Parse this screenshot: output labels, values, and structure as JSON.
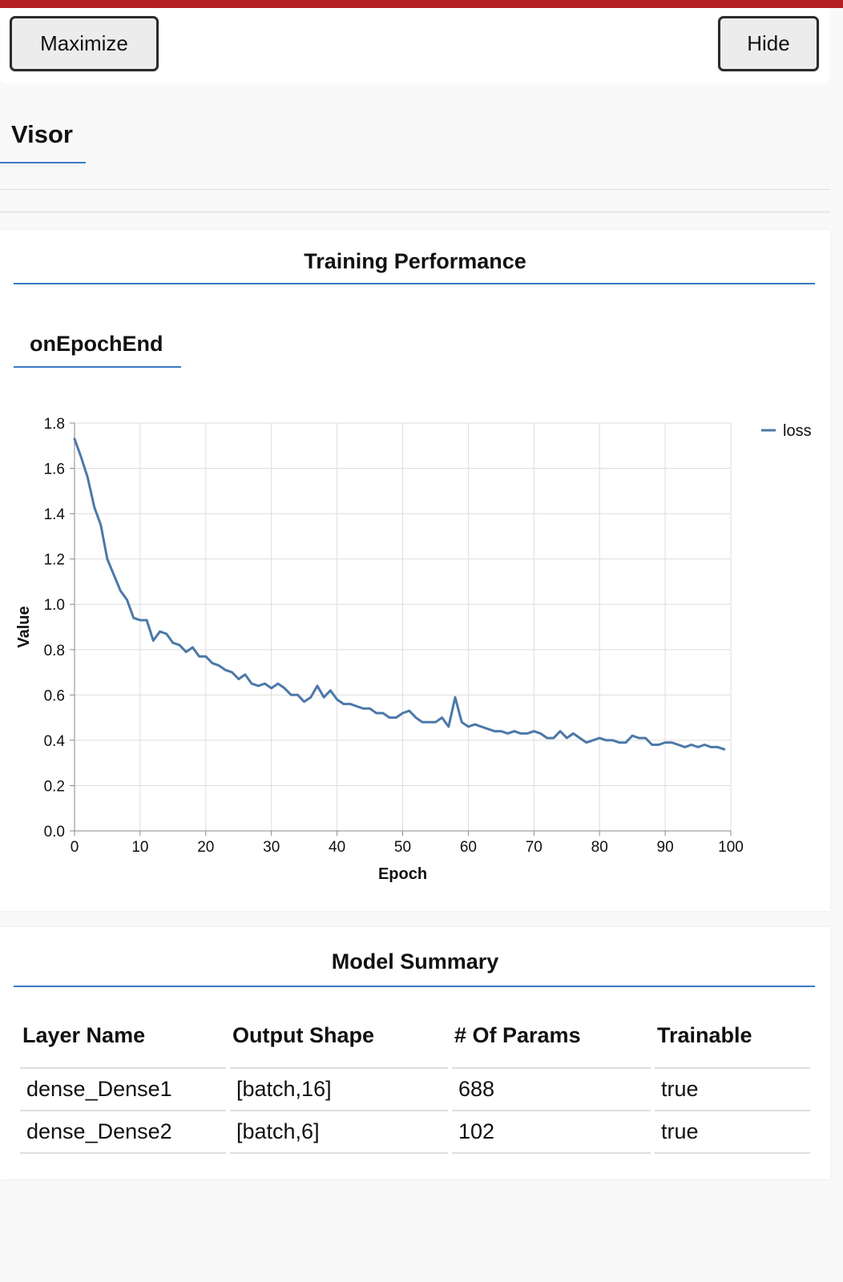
{
  "toolbar": {
    "maximize_label": "Maximize",
    "hide_label": "Hide"
  },
  "visor": {
    "title": "Visor"
  },
  "colors": {
    "accent": "#3b78c3",
    "top_bar": "#b22026",
    "series_line": "#4c78a8"
  },
  "training": {
    "title": "Training Performance",
    "tab": "onEpochEnd"
  },
  "chart_data": {
    "type": "line",
    "xlabel": "Epoch",
    "ylabel": "Value",
    "xlim": [
      0,
      100
    ],
    "ylim": [
      0,
      1.8
    ],
    "x_ticks": [
      "0",
      "10",
      "20",
      "30",
      "40",
      "50",
      "60",
      "70",
      "80",
      "90",
      "100"
    ],
    "y_ticks": [
      "0.0",
      "0.2",
      "0.4",
      "0.6",
      "0.8",
      "1.0",
      "1.2",
      "1.4",
      "1.6",
      "1.8"
    ],
    "grid": true,
    "legend_position": "top-right",
    "series": [
      {
        "name": "loss",
        "color": "#4c78a8",
        "x": [
          0,
          1,
          2,
          3,
          4,
          5,
          6,
          7,
          8,
          9,
          10,
          11,
          12,
          13,
          14,
          15,
          16,
          17,
          18,
          19,
          20,
          21,
          22,
          23,
          24,
          25,
          26,
          27,
          28,
          29,
          30,
          31,
          32,
          33,
          34,
          35,
          36,
          37,
          38,
          39,
          40,
          41,
          42,
          43,
          44,
          45,
          46,
          47,
          48,
          49,
          50,
          51,
          52,
          53,
          54,
          55,
          56,
          57,
          58,
          59,
          60,
          61,
          62,
          63,
          64,
          65,
          66,
          67,
          68,
          69,
          70,
          71,
          72,
          73,
          74,
          75,
          76,
          77,
          78,
          79,
          80,
          81,
          82,
          83,
          84,
          85,
          86,
          87,
          88,
          89,
          90,
          91,
          92,
          93,
          94,
          95,
          96,
          97,
          98,
          99
        ],
        "values": [
          1.73,
          1.65,
          1.56,
          1.43,
          1.35,
          1.2,
          1.13,
          1.06,
          1.02,
          0.94,
          0.93,
          0.93,
          0.84,
          0.88,
          0.87,
          0.83,
          0.82,
          0.79,
          0.81,
          0.77,
          0.77,
          0.74,
          0.73,
          0.71,
          0.7,
          0.67,
          0.69,
          0.65,
          0.64,
          0.65,
          0.63,
          0.65,
          0.63,
          0.6,
          0.6,
          0.57,
          0.59,
          0.64,
          0.59,
          0.62,
          0.58,
          0.56,
          0.56,
          0.55,
          0.54,
          0.54,
          0.52,
          0.52,
          0.5,
          0.5,
          0.52,
          0.53,
          0.5,
          0.48,
          0.48,
          0.48,
          0.5,
          0.46,
          0.59,
          0.48,
          0.46,
          0.47,
          0.46,
          0.45,
          0.44,
          0.44,
          0.43,
          0.44,
          0.43,
          0.43,
          0.44,
          0.43,
          0.41,
          0.41,
          0.44,
          0.41,
          0.43,
          0.41,
          0.39,
          0.4,
          0.41,
          0.4,
          0.4,
          0.39,
          0.39,
          0.42,
          0.41,
          0.41,
          0.38,
          0.38,
          0.39,
          0.39,
          0.38,
          0.37,
          0.38,
          0.37,
          0.38,
          0.37,
          0.37,
          0.36
        ]
      }
    ]
  },
  "model_summary": {
    "title": "Model Summary",
    "columns": [
      "Layer Name",
      "Output Shape",
      "# Of Params",
      "Trainable"
    ],
    "rows": [
      [
        "dense_Dense1",
        "[batch,16]",
        "688",
        "true"
      ],
      [
        "dense_Dense2",
        "[batch,6]",
        "102",
        "true"
      ]
    ]
  }
}
